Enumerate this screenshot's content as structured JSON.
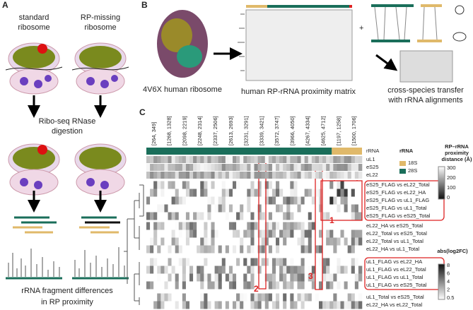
{
  "panel_a": {
    "label": "A",
    "standard": [
      "standard",
      "ribosome"
    ],
    "missing": [
      "RP-missing",
      "ribosome"
    ],
    "step": [
      "Ribo-seq RNase",
      "digestion"
    ],
    "result": [
      "rRNA fragment differences",
      "in RP proximity"
    ]
  },
  "panel_b": {
    "label": "B",
    "structure": "4V6X human ribosome",
    "matrix": "human RP-rRNA proximity matrix",
    "plus": "+",
    "transfer": [
      "cross-species transfer",
      "with rRNA alignments"
    ]
  },
  "panel_c": {
    "label": "C",
    "columns": [
      "[264, 349]",
      "[1268, 1328]",
      "[2098, 2219]",
      "[2248, 2314]",
      "[2337, 2506]",
      "[2613, 2693]",
      "[3231, 3291]",
      "[3339, 3421]",
      "[3572, 3747]",
      "[3966, 4050]",
      "[4267, 4334]",
      "[4625, 4712]",
      "[1197, 1258]",
      "[1500, 1706]"
    ],
    "annotations": [
      "rRNA",
      "uL1",
      "eS25",
      "eL22"
    ],
    "rrna_legend": {
      "title": "rRNA",
      "items": [
        "18S",
        "28S"
      ]
    },
    "distance_legend": {
      "title": [
        "RP–rRNA",
        "proximity",
        "distance (Å)"
      ],
      "ticks": [
        "300",
        "200",
        "100",
        "0"
      ]
    },
    "fc_legend": {
      "title": "abs(log2FC)",
      "ticks": [
        "8",
        "6",
        "4",
        "2",
        "0.5"
      ]
    },
    "rows": [
      "eS25_FLAG vs eL22_Total",
      "eS25_FLAG vs eL22_HA",
      "eS25_FLAG vs uL1_FLAG",
      "eS25_FLAG vs uL1_Total",
      "eS25_FLAG vs eS25_Total",
      "eL22_HA vs eS25_Total",
      "eL22_Total vs eS25_Total",
      "eL22_Total vs uL1_Total",
      "eL22_HA vs uL1_Total",
      "uL1_FLAG vs eL22_HA",
      "uL1_FLAG vs eL22_Total",
      "uL1_FLAG vs uL1_Total",
      "uL1_FLAG vs eS25_Total",
      "uL1_Total vs eS25_Total",
      "eL22_HA vs eL22_Total"
    ],
    "callouts": [
      "1",
      "2",
      "3"
    ]
  }
}
